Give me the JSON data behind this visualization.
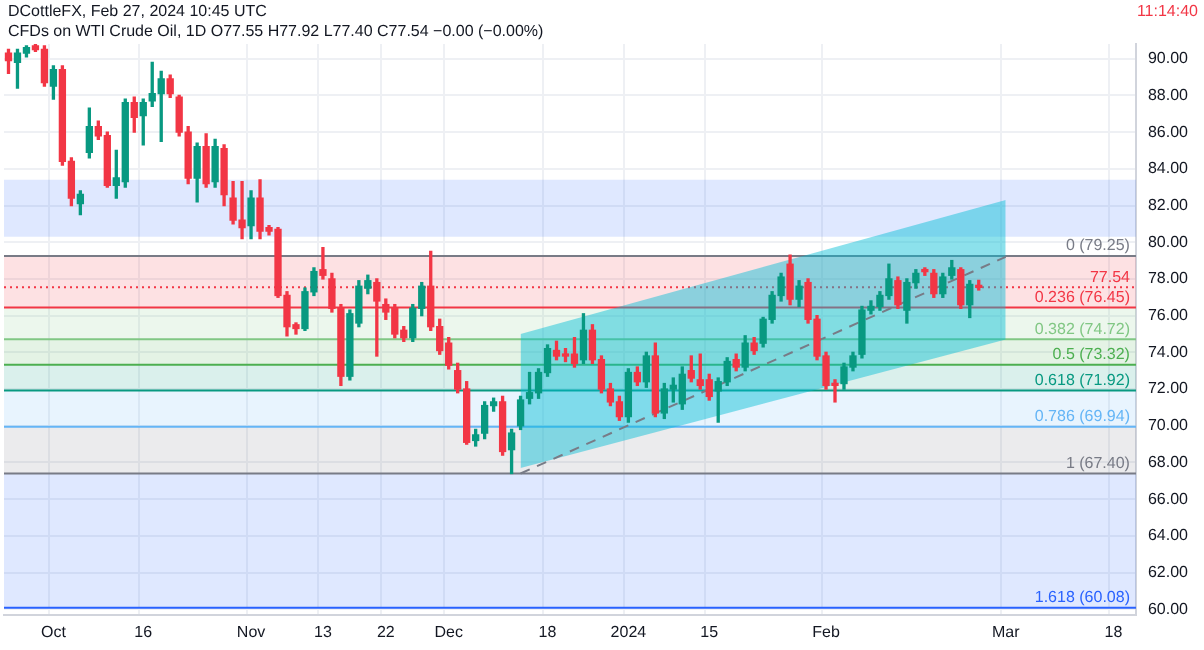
{
  "chart_data": {
    "type": "candlestick",
    "title": "DCottleFX, Feb 27, 2024 10:45 UTC",
    "subtitle": "CFDs on WTI Crude Oil, 1D  O77.55 H77.92 L77.40 C77.54 −0.00 (−0.00%)",
    "categories": [
      null,
      null,
      null,
      null,
      null,
      "Oct",
      null,
      null,
      null,
      null,
      null,
      null,
      null,
      null,
      null,
      "16",
      null,
      null,
      null,
      null,
      null,
      null,
      null,
      null,
      null,
      null,
      null,
      "Nov",
      null,
      null,
      null,
      null,
      null,
      null,
      null,
      "13",
      null,
      null,
      null,
      null,
      null,
      null,
      "22",
      null,
      null,
      null,
      null,
      null,
      null,
      "Dec",
      null,
      null,
      null,
      null,
      null,
      null,
      null,
      null,
      null,
      null,
      "18",
      null,
      null,
      null,
      null,
      null,
      null,
      null,
      null,
      "2024",
      null,
      null,
      null,
      null,
      null,
      null,
      null,
      null,
      "15",
      null,
      null,
      null,
      null,
      null,
      null,
      null,
      null,
      null,
      null,
      null,
      null,
      "Feb",
      null,
      null,
      null,
      null,
      null,
      null,
      null,
      null,
      null,
      null,
      null,
      null,
      null,
      null,
      null,
      null,
      null,
      null,
      null,
      "Mar",
      null,
      null,
      null,
      null,
      null,
      null,
      null,
      null,
      null,
      null,
      null,
      "18",
      null,
      null
    ],
    "ohlc": [
      [
        90.3,
        90.5,
        89.2,
        89.9
      ],
      [
        89.8,
        90.5,
        88.4,
        90.3
      ],
      [
        90.3,
        90.7,
        90.1,
        90.6
      ],
      [
        90.7,
        90.8,
        90.4,
        90.5
      ],
      [
        90.5,
        90.7,
        88.5,
        88.7
      ],
      [
        88.5,
        89.6,
        87.8,
        89.4
      ],
      [
        89.4,
        89.6,
        84.2,
        84.4
      ],
      [
        84.4,
        84.6,
        82.0,
        82.4
      ],
      [
        82.1,
        82.8,
        81.5,
        82.6
      ],
      [
        84.9,
        87.3,
        84.6,
        86.3
      ],
      [
        86.3,
        86.6,
        85.6,
        85.8
      ],
      [
        85.8,
        86.0,
        83.0,
        83.1
      ],
      [
        83.1,
        85.0,
        82.4,
        83.5
      ],
      [
        83.3,
        87.8,
        83.0,
        87.6
      ],
      [
        87.6,
        87.9,
        86.0,
        86.8
      ],
      [
        86.9,
        87.8,
        85.3,
        87.6
      ],
      [
        87.7,
        89.8,
        87.4,
        88.1
      ],
      [
        88.1,
        89.3,
        85.5,
        88.9
      ],
      [
        88.9,
        89.1,
        87.9,
        88.1
      ],
      [
        87.9,
        88.0,
        85.8,
        86.0
      ],
      [
        86.0,
        86.3,
        83.2,
        83.5
      ],
      [
        83.5,
        85.4,
        82.2,
        85.2
      ],
      [
        85.2,
        85.9,
        83.0,
        83.2
      ],
      [
        83.3,
        85.6,
        83.0,
        85.2
      ],
      [
        85.1,
        85.3,
        82.0,
        82.6
      ],
      [
        82.4,
        83.3,
        81.0,
        81.2
      ],
      [
        81.2,
        83.3,
        80.2,
        80.8
      ],
      [
        80.9,
        82.8,
        80.2,
        82.4
      ],
      [
        82.4,
        83.4,
        80.2,
        80.6
      ],
      [
        80.8,
        80.9,
        80.4,
        80.6
      ],
      [
        80.7,
        80.8,
        77.0,
        77.1
      ],
      [
        77.1,
        77.3,
        74.9,
        75.4
      ],
      [
        75.5,
        75.6,
        75.0,
        75.3
      ],
      [
        75.3,
        77.5,
        75.2,
        77.3
      ],
      [
        77.3,
        78.6,
        77.1,
        78.4
      ],
      [
        78.5,
        79.7,
        78.0,
        78.2
      ],
      [
        78.0,
        78.3,
        76.2,
        76.4
      ],
      [
        76.4,
        76.6,
        72.2,
        72.7
      ],
      [
        72.7,
        76.3,
        72.5,
        76.1
      ],
      [
        75.6,
        77.9,
        75.4,
        77.6
      ],
      [
        77.5,
        78.2,
        77.2,
        77.9
      ],
      [
        77.8,
        78.0,
        73.8,
        76.8
      ],
      [
        76.6,
        76.9,
        75.8,
        76.2
      ],
      [
        76.4,
        76.6,
        74.8,
        75.0
      ],
      [
        75.2,
        75.4,
        74.6,
        74.8
      ],
      [
        74.8,
        76.6,
        74.6,
        76.4
      ],
      [
        76.4,
        77.8,
        76.0,
        77.6
      ],
      [
        77.6,
        79.5,
        75.2,
        75.4
      ],
      [
        75.4,
        75.8,
        73.9,
        74.1
      ],
      [
        74.5,
        74.8,
        73.1,
        73.3
      ],
      [
        73.0,
        73.4,
        71.8,
        72.0
      ],
      [
        72.0,
        72.4,
        69.0,
        69.1
      ],
      [
        69.2,
        69.8,
        68.9,
        69.5
      ],
      [
        69.6,
        71.3,
        69.3,
        71.1
      ],
      [
        71.1,
        71.5,
        70.8,
        71.3
      ],
      [
        71.3,
        71.6,
        68.4,
        68.6
      ],
      [
        68.7,
        69.8,
        67.4,
        69.6
      ],
      [
        70.0,
        71.6,
        69.8,
        71.4
      ],
      [
        71.5,
        72.9,
        71.2,
        71.8
      ],
      [
        71.8,
        73.1,
        71.5,
        72.9
      ],
      [
        72.9,
        74.4,
        72.7,
        74.2
      ],
      [
        74.1,
        74.6,
        73.6,
        73.8
      ],
      [
        73.9,
        74.2,
        73.5,
        73.8
      ],
      [
        73.9,
        74.8,
        73.2,
        73.4
      ],
      [
        73.6,
        76.1,
        73.4,
        75.2
      ],
      [
        75.2,
        75.5,
        73.4,
        73.6
      ],
      [
        73.6,
        73.8,
        71.8,
        72.0
      ],
      [
        72.0,
        72.3,
        71.1,
        71.3
      ],
      [
        71.3,
        71.6,
        70.3,
        70.5
      ],
      [
        70.5,
        73.1,
        70.2,
        72.9
      ],
      [
        72.9,
        73.2,
        72.2,
        72.4
      ],
      [
        72.4,
        74.0,
        72.1,
        73.8
      ],
      [
        73.8,
        74.5,
        70.5,
        70.7
      ],
      [
        70.7,
        72.3,
        70.4,
        72.0
      ],
      [
        72.0,
        72.6,
        71.3,
        72.2
      ],
      [
        71.2,
        73.2,
        70.9,
        72.8
      ],
      [
        73.0,
        73.8,
        72.4,
        72.6
      ],
      [
        72.5,
        73.9,
        72.0,
        72.2
      ],
      [
        72.5,
        72.8,
        71.4,
        71.6
      ],
      [
        71.9,
        72.6,
        70.2,
        72.4
      ],
      [
        72.4,
        73.7,
        72.2,
        73.5
      ],
      [
        73.6,
        73.9,
        73.0,
        73.2
      ],
      [
        73.2,
        74.9,
        73.0,
        74.5
      ],
      [
        74.5,
        74.8,
        73.9,
        74.1
      ],
      [
        74.5,
        75.9,
        74.3,
        75.8
      ],
      [
        75.8,
        77.3,
        75.6,
        77.1
      ],
      [
        77.1,
        78.3,
        76.8,
        78.1
      ],
      [
        78.8,
        79.3,
        76.6,
        76.9
      ],
      [
        76.9,
        77.9,
        76.5,
        77.6
      ],
      [
        77.8,
        78.0,
        75.6,
        75.8
      ],
      [
        75.8,
        76.0,
        73.6,
        73.8
      ],
      [
        73.8,
        74.0,
        72.0,
        72.2
      ],
      [
        72.3,
        72.5,
        71.3,
        72.2
      ],
      [
        72.3,
        73.4,
        72.0,
        73.2
      ],
      [
        73.2,
        74.0,
        73.0,
        73.8
      ],
      [
        73.9,
        76.5,
        73.7,
        76.3
      ],
      [
        76.3,
        76.8,
        76.1,
        76.5
      ],
      [
        76.5,
        77.3,
        76.3,
        77.1
      ],
      [
        77.1,
        78.8,
        76.9,
        78.0
      ],
      [
        77.9,
        78.1,
        76.4,
        76.6
      ],
      [
        76.3,
        78.0,
        75.6,
        77.8
      ],
      [
        77.8,
        78.5,
        77.5,
        78.3
      ],
      [
        78.5,
        78.6,
        78.2,
        78.4
      ],
      [
        78.3,
        78.5,
        77.0,
        77.2
      ],
      [
        77.2,
        78.3,
        77.0,
        78.1
      ],
      [
        78.2,
        79.0,
        78.0,
        78.6
      ],
      [
        78.5,
        78.6,
        76.4,
        76.6
      ],
      [
        76.6,
        77.9,
        75.9,
        77.7
      ],
      [
        77.55,
        77.92,
        77.4,
        77.54
      ],
      null,
      null,
      null,
      null,
      null,
      null,
      null,
      null,
      null,
      null,
      null,
      null,
      null,
      null,
      null,
      null,
      null
    ],
    "series": [
      {
        "type": "line",
        "color": "#787b86",
        "line_style": "dashed",
        "values": [
          null,
          null,
          null,
          null,
          null,
          null,
          null,
          null,
          null,
          null,
          null,
          null,
          null,
          null,
          null,
          null,
          null,
          null,
          null,
          null,
          null,
          null,
          null,
          null,
          null,
          null,
          null,
          null,
          null,
          null,
          null,
          null,
          null,
          null,
          null,
          null,
          null,
          null,
          null,
          null,
          null,
          null,
          null,
          null,
          null,
          null,
          null,
          null,
          null,
          null,
          null,
          null,
          null,
          null,
          null,
          null,
          null,
          67.4,
          null,
          null,
          null,
          null,
          null,
          null,
          null,
          null,
          null,
          null,
          null,
          null,
          null,
          null,
          null,
          null,
          null,
          null,
          null,
          null,
          null,
          null,
          null,
          null,
          null,
          null,
          null,
          null,
          null,
          null,
          null,
          null,
          null,
          null,
          null,
          null,
          null,
          null,
          null,
          null,
          null,
          null,
          null,
          null,
          null,
          null,
          null,
          null,
          null,
          null,
          null,
          null,
          null,
          79.2,
          null,
          null,
          null,
          null,
          null,
          null,
          null,
          null,
          null,
          null,
          null,
          null,
          null,
          null
        ],
        "lower": [
          null,
          null,
          null,
          null,
          null,
          null,
          null,
          null,
          null,
          null,
          null,
          null,
          null,
          null,
          null,
          null,
          null,
          null,
          null,
          null,
          null,
          null,
          null,
          null,
          null,
          null,
          null,
          null,
          null,
          null,
          null,
          null,
          null,
          null,
          null,
          null,
          null,
          null,
          null,
          null,
          null,
          null,
          null,
          null,
          null,
          null,
          null,
          null,
          null,
          null,
          null,
          null,
          null,
          null,
          null,
          null,
          null,
          67.7,
          null,
          null,
          null,
          null,
          null,
          null,
          null,
          null,
          null,
          null,
          null,
          null,
          null,
          null,
          null,
          null,
          null,
          null,
          null,
          null,
          null,
          null,
          null,
          null,
          null,
          null,
          null,
          null,
          null,
          null,
          null,
          null,
          null,
          null,
          null,
          null,
          null,
          null,
          null,
          null,
          null,
          null,
          null,
          null,
          null,
          null,
          null,
          null,
          null,
          null,
          null,
          null,
          null,
          74.7,
          null,
          null,
          null,
          null,
          null,
          null,
          null,
          null,
          null,
          null,
          null,
          null,
          null,
          null
        ],
        "upper": [
          null,
          null,
          null,
          null,
          null,
          null,
          null,
          null,
          null,
          null,
          null,
          null,
          null,
          null,
          null,
          null,
          null,
          null,
          null,
          null,
          null,
          null,
          null,
          null,
          null,
          null,
          null,
          null,
          null,
          null,
          null,
          null,
          null,
          null,
          null,
          null,
          null,
          null,
          null,
          null,
          null,
          null,
          null,
          null,
          null,
          null,
          null,
          null,
          null,
          null,
          null,
          null,
          null,
          null,
          null,
          null,
          null,
          75.0,
          null,
          null,
          null,
          null,
          null,
          null,
          null,
          null,
          null,
          null,
          null,
          null,
          null,
          null,
          null,
          null,
          null,
          null,
          null,
          null,
          null,
          null,
          null,
          null,
          null,
          null,
          null,
          null,
          null,
          null,
          null,
          null,
          null,
          null,
          null,
          null,
          null,
          null,
          null,
          null,
          null,
          null,
          null,
          null,
          null,
          null,
          null,
          null,
          null,
          null,
          null,
          null,
          null,
          82.3,
          null,
          null,
          null,
          null,
          null,
          null,
          null,
          null,
          null,
          null,
          null,
          null,
          null,
          null
        ]
      }
    ],
    "ylim": [
      59.7,
      90.8
    ],
    "yticks": [
      {
        "value": 60,
        "label": "60.00"
      },
      {
        "value": 62,
        "label": "62.00"
      },
      {
        "value": 64,
        "label": "64.00"
      },
      {
        "value": 66,
        "label": "66.00"
      },
      {
        "value": 68,
        "label": "68.00"
      },
      {
        "value": 70,
        "label": "70.00"
      },
      {
        "value": 72,
        "label": "72.00"
      },
      {
        "value": 74,
        "label": "74.00"
      },
      {
        "value": 76,
        "label": "76.00"
      },
      {
        "value": 78,
        "label": "78.00"
      },
      {
        "value": 80,
        "label": "80.00"
      },
      {
        "value": 82,
        "label": "82.00"
      },
      {
        "value": 84,
        "label": "84.00"
      },
      {
        "value": 86,
        "label": "86.00"
      },
      {
        "value": 88,
        "label": "88.00"
      },
      {
        "value": 90,
        "label": "90.00"
      }
    ],
    "bands": [
      {
        "axis": "y",
        "from": 80.3,
        "to": 83.4,
        "color": "#2962ff"
      },
      {
        "axis": "y",
        "from": 76.45,
        "to": 79.25,
        "color": "#f23645"
      },
      {
        "axis": "y",
        "from": 74.72,
        "to": 76.45,
        "color": "#81c784"
      },
      {
        "axis": "y",
        "from": 73.32,
        "to": 74.72,
        "color": "#4caf50"
      },
      {
        "axis": "y",
        "from": 71.92,
        "to": 73.32,
        "color": "#089981"
      },
      {
        "axis": "y",
        "from": 69.94,
        "to": 71.92,
        "color": "#64b5f6"
      },
      {
        "axis": "y",
        "from": 67.4,
        "to": 69.94,
        "color": "#787b86"
      },
      {
        "axis": "y",
        "from": 60.08,
        "to": 67.4,
        "color": "#2962ff"
      }
    ],
    "ref_lines": [
      {
        "axis": "y",
        "value": 79.25,
        "label": "0 (79.25)",
        "color": "#787b86"
      },
      {
        "axis": "y",
        "value": 76.45,
        "label": "0.236 (76.45)",
        "color": "#f23645"
      },
      {
        "axis": "y",
        "value": 74.72,
        "label": "0.382 (74.72)",
        "color": "#81c784"
      },
      {
        "axis": "y",
        "value": 73.32,
        "label": "0.5 (73.32)",
        "color": "#4caf50"
      },
      {
        "axis": "y",
        "value": 71.92,
        "label": "0.618 (71.92)",
        "color": "#089981"
      },
      {
        "axis": "y",
        "value": 69.94,
        "label": "0.786 (69.94)",
        "color": "#64b5f6"
      },
      {
        "axis": "y",
        "value": 67.4,
        "label": "1 (67.40)",
        "color": "#787b86"
      },
      {
        "axis": "y",
        "value": 60.08,
        "label": "1.618 (60.08)",
        "color": "#2962ff"
      },
      {
        "axis": "y",
        "value": 77.54,
        "label": "77.54",
        "color": "#f23645",
        "line_style": "dotted"
      }
    ],
    "annotations": [
      "11:14:40"
    ],
    "grid": true
  }
}
